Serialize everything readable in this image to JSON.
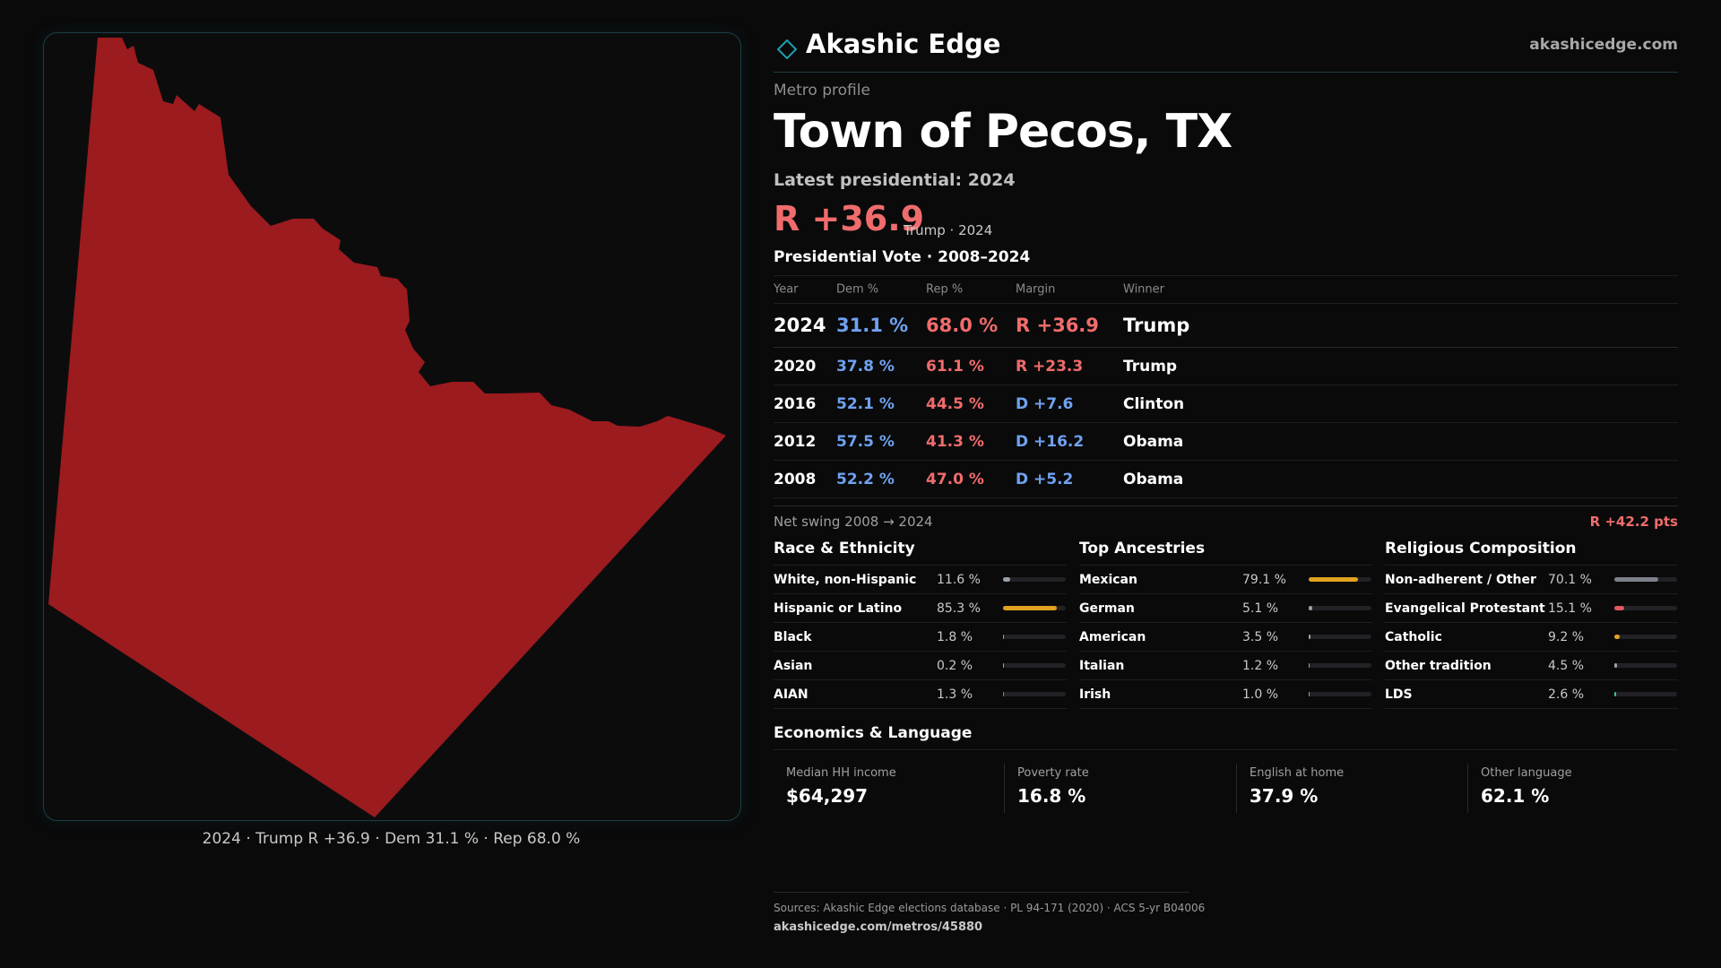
{
  "map": {
    "fill_color": "#9b1b1e",
    "caption": "2024 · Trump R +36.9 · Dem 31.1 % · Rep 68.0 %"
  },
  "header": {
    "icon": "diamond-logo-icon",
    "brand": "Akashic Edge",
    "site": "akashicedge.com"
  },
  "profile": {
    "eyebrow": "Metro profile",
    "title": "Town of Pecos, TX",
    "latest": "Latest presidential: 2024",
    "margin": "R +36.9",
    "margin_sub": "Trump · 2024"
  },
  "vote_table": {
    "title": "Presidential Vote · 2008–2024",
    "headers": [
      "Year",
      "Dem %",
      "Rep %",
      "Margin",
      "Winner"
    ],
    "rows": [
      {
        "year": "2024",
        "dem": "31.1 %",
        "rep": "68.0 %",
        "margin": "R +36.9",
        "winner": "Trump"
      },
      {
        "year": "2020",
        "dem": "37.8 %",
        "rep": "61.1 %",
        "margin": "R +23.3",
        "winner": "Trump"
      },
      {
        "year": "2016",
        "dem": "52.1 %",
        "rep": "44.5 %",
        "margin": "D +7.6",
        "winner": "Clinton"
      },
      {
        "year": "2012",
        "dem": "57.5 %",
        "rep": "41.3 %",
        "margin": "D +16.2",
        "winner": "Obama"
      },
      {
        "year": "2008",
        "dem": "52.2 %",
        "rep": "47.0 %",
        "margin": "D +5.2",
        "winner": "Obama"
      }
    ]
  },
  "swing": {
    "label": "Net swing 2008 → 2024",
    "value": "R +42.2 pts"
  },
  "race": {
    "title": "Race & Ethnicity",
    "items": [
      {
        "label": "White, non-Hispanic",
        "value": "11.6 %",
        "pct": 11.6,
        "color": "#9aa0a8"
      },
      {
        "label": "Hispanic or Latino",
        "value": "85.3 %",
        "pct": 85.3,
        "color": "#e0a21f"
      },
      {
        "label": "Black",
        "value": "1.8 %",
        "pct": 1.8,
        "color": "#9aa0a8"
      },
      {
        "label": "Asian",
        "value": "0.2 %",
        "pct": 0.2,
        "color": "#9aa0a8"
      },
      {
        "label": "AIAN",
        "value": "1.3 %",
        "pct": 1.3,
        "color": "#c8742e"
      }
    ]
  },
  "ancestry": {
    "title": "Top Ancestries",
    "items": [
      {
        "label": "Mexican",
        "value": "79.1 %",
        "pct": 79.1,
        "color": "#e0a21f"
      },
      {
        "label": "German",
        "value": "5.1 %",
        "pct": 5.1,
        "color": "#9aa0a8"
      },
      {
        "label": "American",
        "value": "3.5 %",
        "pct": 3.5,
        "color": "#9aa0a8"
      },
      {
        "label": "Italian",
        "value": "1.2 %",
        "pct": 1.2,
        "color": "#9aa0a8"
      },
      {
        "label": "Irish",
        "value": "1.0 %",
        "pct": 1.0,
        "color": "#9aa0a8"
      }
    ]
  },
  "religion": {
    "title": "Religious Composition",
    "items": [
      {
        "label": "Non-adherent / Other",
        "value": "70.1 %",
        "pct": 70.1,
        "color": "#7c808a"
      },
      {
        "label": "Evangelical Protestant",
        "value": "15.1 %",
        "pct": 15.1,
        "color": "#e0575f"
      },
      {
        "label": "Catholic",
        "value": "9.2 %",
        "pct": 9.2,
        "color": "#e0a21f"
      },
      {
        "label": "Other tradition",
        "value": "4.5 %",
        "pct": 4.5,
        "color": "#9aa0a8"
      },
      {
        "label": "LDS",
        "value": "2.6 %",
        "pct": 2.6,
        "color": "#2ec4a6"
      }
    ]
  },
  "economics": {
    "title": "Economics & Language",
    "items": [
      {
        "label": "Median HH income",
        "value": "$64,297"
      },
      {
        "label": "Poverty rate",
        "value": "16.8 %"
      },
      {
        "label": "English at home",
        "value": "37.9 %"
      },
      {
        "label": "Other language",
        "value": "62.1 %"
      }
    ]
  },
  "footer": {
    "sources": "Sources: Akashic Edge elections database · PL 94-171 (2020) · ACS 5-yr B04006",
    "url": "akashicedge.com/metros/45880"
  }
}
